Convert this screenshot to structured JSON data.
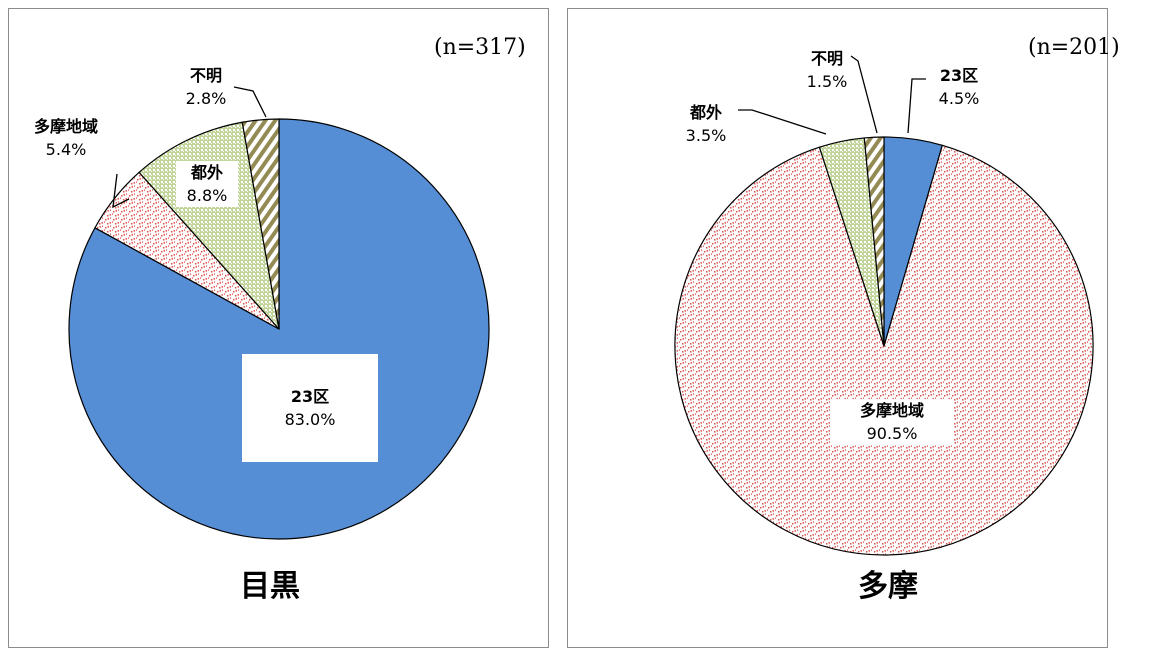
{
  "chart_data": [
    {
      "type": "pie",
      "title": "目黒",
      "n_label": "(n=317)",
      "slices": [
        {
          "label": "23区",
          "value": 83.0,
          "value_label": "83.0%",
          "fill": "solid",
          "color": "#558ed5"
        },
        {
          "label": "多摩地域",
          "value": 5.4,
          "value_label": "5.4%",
          "fill": "hatch-red",
          "color": "#e06666"
        },
        {
          "label": "都外",
          "value": 8.8,
          "value_label": "8.8%",
          "fill": "dots-green",
          "color": "#9bbb59"
        },
        {
          "label": "不明",
          "value": 2.8,
          "value_label": "2.8%",
          "fill": "stripes-brown",
          "color": "#948a54"
        }
      ]
    },
    {
      "type": "pie",
      "title": "多摩",
      "n_label": "(n=201)",
      "slices": [
        {
          "label": "23区",
          "value": 4.5,
          "value_label": "4.5%",
          "fill": "solid",
          "color": "#558ed5"
        },
        {
          "label": "多摩地域",
          "value": 90.5,
          "value_label": "90.5%",
          "fill": "hatch-red",
          "color": "#e06666"
        },
        {
          "label": "都外",
          "value": 3.5,
          "value_label": "3.5%",
          "fill": "dots-green",
          "color": "#9bbb59"
        },
        {
          "label": "不明",
          "value": 1.5,
          "value_label": "1.5%",
          "fill": "stripes-brown",
          "color": "#948a54"
        }
      ]
    }
  ]
}
